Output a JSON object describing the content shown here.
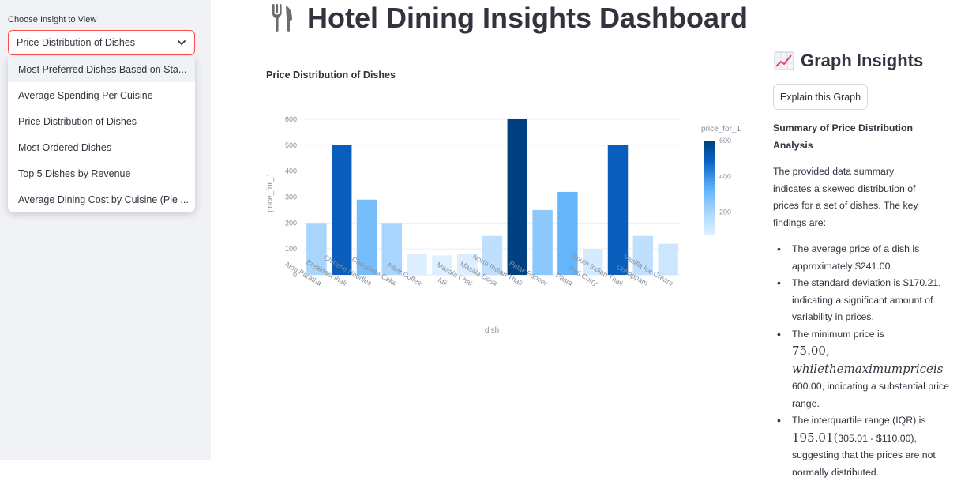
{
  "sidebar": {
    "label": "Choose Insight to View",
    "selected": "Price Distribution of Dishes",
    "options": [
      "Most Preferred Dishes Based on Sta...",
      "Average Spending Per Cuisine",
      "Price Distribution of Dishes",
      "Most Ordered Dishes",
      "Top 5 Dishes by Revenue",
      "Average Dining Cost by Cuisine (Pie ..."
    ]
  },
  "header": {
    "title": "Hotel Dining Insights Dashboard",
    "icon": "fork-knife-icon"
  },
  "chart_data": {
    "type": "bar",
    "title": "Price Distribution of Dishes",
    "xlabel": "dish",
    "ylabel": "price_for_1",
    "categories": [
      "Aloo Paratha",
      "Breakfast thali",
      "Chinese Noodles",
      "Chocolate Cake",
      "Filter Coffee",
      "Idli",
      "Masala Chai",
      "Masala Dosa",
      "North Indian Thali",
      "Palak Paneer",
      "Pasta",
      "Roti Curry",
      "South Indian Thali",
      "Utthappam",
      "Vanilla Ice Cream"
    ],
    "values": [
      200,
      500,
      290,
      200,
      80,
      75,
      80,
      150,
      600,
      250,
      320,
      100,
      500,
      150,
      120
    ],
    "ylim": [
      0,
      600
    ],
    "yticks": [
      "0",
      "100",
      "200",
      "300",
      "400",
      "500",
      "600"
    ],
    "colorbar": {
      "title": "price_for_1",
      "ticks": [
        "200",
        "400",
        "600"
      ],
      "colors": [
        "#deebf7",
        "#a6d4fd",
        "#5ab0fa",
        "#0a62c4",
        "#003f80"
      ]
    }
  },
  "insights": {
    "heading": "Graph Insights",
    "icon": "chart-increasing-icon",
    "button": "Explain this Graph",
    "summary_title": "Summary of Price Distribution Analysis",
    "intro": "The provided data summary indicates a skewed distribution of prices for a set of dishes. The key findings are:",
    "b1": "The average price of a dish is approximately $241.00.",
    "b2": "The standard deviation is $170.21, indicating a significant amount of variability in prices.",
    "b3_a": "The minimum price is",
    "b3_math_num": "75.00,",
    "b3_math_it": "whilethemaximumpriceis",
    "b3_b": "600.00, indicating a substantial price range.",
    "b4_a": "The interquartile range (IQR) is",
    "b4_math": "195.01(",
    "b4_b": "305.01 - $110.00),",
    "b4_c": "suggesting that the prices are not normally distributed."
  }
}
